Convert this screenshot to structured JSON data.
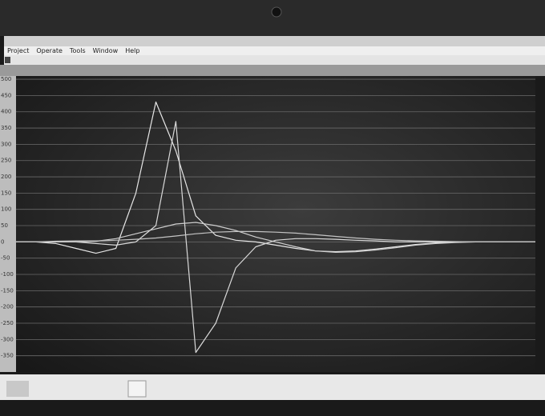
{
  "menu": [
    "Project",
    "Operate",
    "Tools",
    "Window",
    "Help"
  ],
  "chart_data": {
    "type": "line",
    "categories": [
      null,
      null,
      null,
      null,
      null,
      null,
      null,
      null,
      null,
      null,
      null,
      null,
      null,
      null,
      null,
      null,
      null,
      null,
      null,
      null,
      null,
      null,
      null,
      null,
      null,
      null,
      null
    ],
    "series": [
      {
        "color": "#e6e6e6",
        "values": [
          0,
          0,
          -5,
          -20,
          -35,
          -20,
          150,
          430,
          280,
          80,
          20,
          5,
          0,
          -10,
          -20,
          -28,
          -30,
          -28,
          -22,
          -15,
          -8,
          -3,
          0,
          0,
          0,
          0,
          0
        ]
      },
      {
        "color": "#d9d9d9",
        "values": [
          0,
          0,
          0,
          0,
          -5,
          -10,
          0,
          50,
          370,
          -340,
          -250,
          -80,
          -15,
          5,
          10,
          10,
          8,
          5,
          3,
          0,
          0,
          0,
          0,
          0,
          0,
          0,
          0
        ]
      },
      {
        "color": "#cfcfcf",
        "values": [
          0,
          0,
          0,
          0,
          2,
          10,
          25,
          40,
          55,
          60,
          50,
          35,
          15,
          0,
          -15,
          -28,
          -32,
          -30,
          -25,
          -18,
          -10,
          -5,
          -2,
          0,
          0,
          0,
          0
        ]
      },
      {
        "color": "#c4c4c4",
        "values": [
          0,
          0,
          2,
          3,
          3,
          5,
          8,
          12,
          18,
          25,
          30,
          32,
          32,
          30,
          27,
          22,
          17,
          12,
          8,
          5,
          3,
          2,
          1,
          0,
          0,
          0,
          0
        ]
      }
    ],
    "ylim": [
      -400,
      510
    ],
    "yticks": [
      500,
      450,
      400,
      350,
      300,
      250,
      200,
      150,
      100,
      50,
      0,
      -50,
      -100,
      -150,
      -200,
      -250,
      -300,
      -350
    ],
    "grid": true
  }
}
